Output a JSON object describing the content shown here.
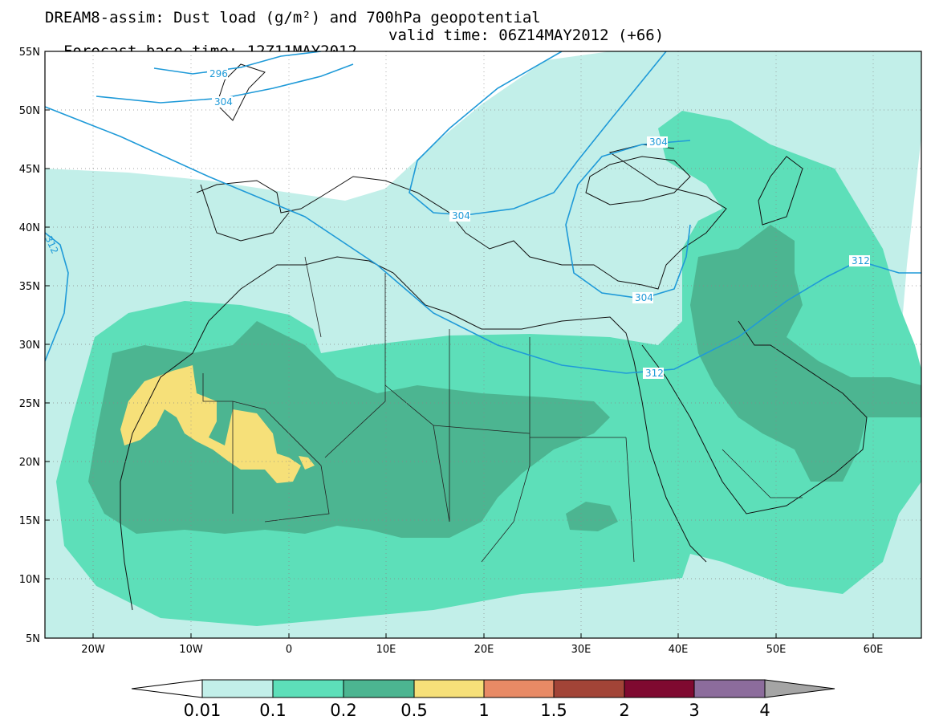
{
  "title": {
    "line1": "DREAM8-assim: Dust load (g/m²) and 700hPa geopotential",
    "line2_base": "Forecast base time: 12Z11MAY2012",
    "line2_valid": "valid time: 06Z14MAY2012 (+66)"
  },
  "axes": {
    "lon_labels": [
      "20W",
      "10W",
      "0",
      "10E",
      "20E",
      "30E",
      "40E",
      "50E",
      "60E"
    ],
    "lat_labels": [
      "55N",
      "50N",
      "45N",
      "40N",
      "35N",
      "30N",
      "25N",
      "20N",
      "15N",
      "10N",
      "5N"
    ]
  },
  "contours": {
    "labels": [
      "296",
      "304",
      "312",
      "304",
      "304",
      "304",
      "312",
      "312"
    ],
    "color": "#1f9ad8"
  },
  "colorbar": {
    "labels": [
      "0.01",
      "0.1",
      "0.2",
      "0.5",
      "1",
      "1.5",
      "2",
      "3",
      "4"
    ],
    "colors": [
      "#ffffff",
      "#c2efe9",
      "#5ddfb9",
      "#4cb591",
      "#f6e079",
      "#e88a65",
      "#a24437",
      "#7f0930",
      "#8c6c9c",
      "#a5a5a5"
    ]
  },
  "dust_colors": {
    "c001": "#c2efe9",
    "c01": "#5ddfb9",
    "c02": "#4cb591",
    "c05": "#f6e079"
  }
}
